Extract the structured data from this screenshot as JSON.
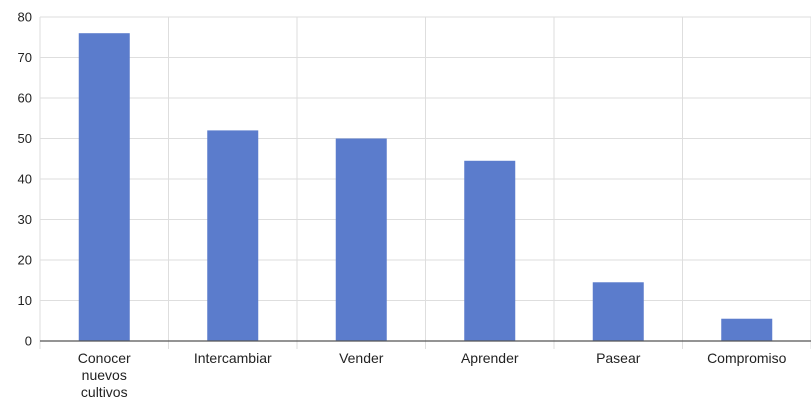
{
  "colors": {
    "bar": "#5b7ccc",
    "grid": "#dedede",
    "axis": "#555555",
    "background": "#ffffff"
  },
  "chart_data": {
    "type": "bar",
    "title": "",
    "xlabel": "",
    "ylabel": "",
    "categories": [
      [
        "Conocer",
        "nuevos",
        "cultivos"
      ],
      [
        "Intercambiar"
      ],
      [
        "Vender"
      ],
      [
        "Aprender"
      ],
      [
        "Pasear"
      ],
      [
        "Compromiso"
      ]
    ],
    "values": [
      76,
      52,
      50,
      44.5,
      14.5,
      5.5
    ],
    "ylim": [
      0,
      80
    ],
    "yticks": [
      0,
      10,
      20,
      30,
      40,
      50,
      60,
      70,
      80
    ],
    "grid": true,
    "legend": false
  }
}
